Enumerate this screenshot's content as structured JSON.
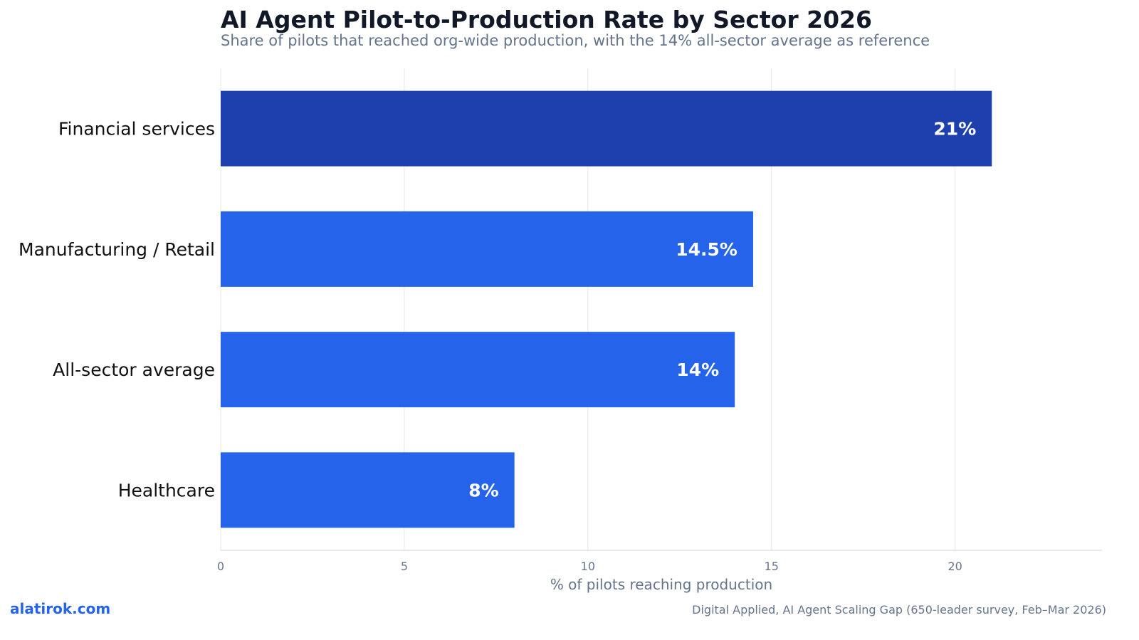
{
  "header": {
    "title": "AI Agent Pilot-to-Production Rate by Sector 2026",
    "subtitle": "Share of pilots that reached org-wide production, with the 14% all-sector average as reference"
  },
  "footer": {
    "brand": "alatirok.com",
    "source": "Digital Applied, AI Agent Scaling Gap (650-leader survey, Feb–Mar 2026)"
  },
  "colors": {
    "highlight": "#1e40af",
    "bar": "#2563eb",
    "grid": "#e5e7eb",
    "axis_text": "#64748b",
    "category_text": "#111111",
    "value_label": "#ffffff"
  },
  "chart_data": {
    "type": "bar",
    "orientation": "horizontal",
    "categories": [
      "Financial services",
      "Manufacturing / Retail",
      "All-sector average",
      "Healthcare"
    ],
    "values": [
      21,
      14.5,
      14,
      8
    ],
    "value_labels": [
      "21%",
      "14.5%",
      "14%",
      "8%"
    ],
    "highlight_index": 0,
    "xlabel": "% of pilots reaching production",
    "ylabel": "",
    "xlim": [
      0,
      24
    ],
    "xticks": [
      0,
      5,
      10,
      15,
      20
    ],
    "grid": "vertical"
  }
}
